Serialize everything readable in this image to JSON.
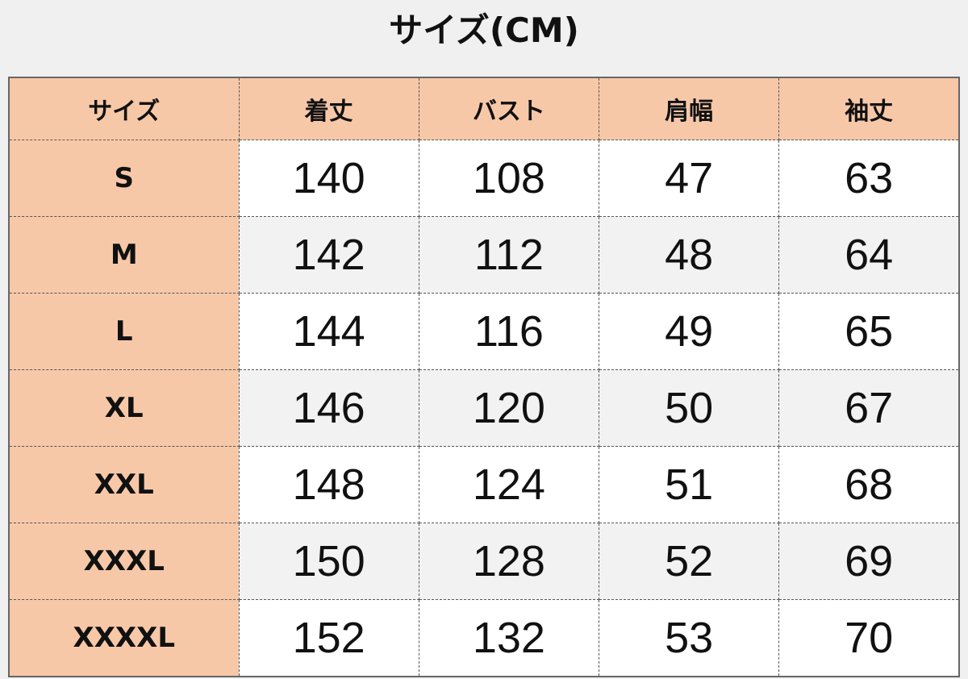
{
  "title": "サイズ(CM)",
  "colors": {
    "header_bg": "#f7c8a8",
    "row_alt_bg": "#f2f2f2",
    "row_bg": "#ffffff",
    "page_bg": "#f0f0f0"
  },
  "table": {
    "headers": [
      "サイズ",
      "着丈",
      "バスト",
      "肩幅",
      "袖丈"
    ],
    "rows": [
      [
        "S",
        "140",
        "108",
        "47",
        "63"
      ],
      [
        "M",
        "142",
        "112",
        "48",
        "64"
      ],
      [
        "L",
        "144",
        "116",
        "49",
        "65"
      ],
      [
        "XL",
        "146",
        "120",
        "50",
        "67"
      ],
      [
        "XXL",
        "148",
        "124",
        "51",
        "68"
      ],
      [
        "XXXL",
        "150",
        "128",
        "52",
        "69"
      ],
      [
        "XXXXL",
        "152",
        "132",
        "53",
        "70"
      ]
    ]
  }
}
